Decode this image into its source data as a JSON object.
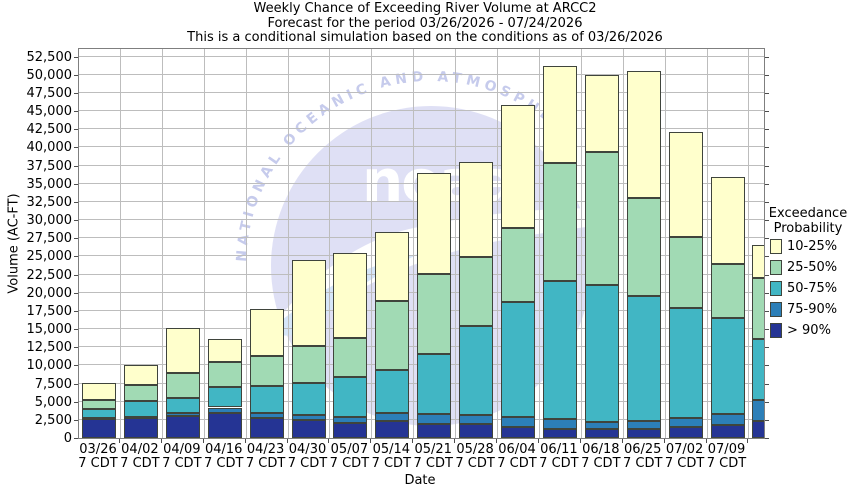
{
  "watermark": {
    "arc_text": "NATIONAL OCEANIC AND ATMOSPHER",
    "logo_text": "noaa"
  },
  "legend": {
    "title_line1": "Exceedance",
    "title_line2": "Probability"
  },
  "chart_data": {
    "type": "bar",
    "stacked": true,
    "title": "Weekly Chance of Exceeding River Volume at ARCC2",
    "subtitle": "Forecast for the period 03/26/2026 - 07/24/2026",
    "note": "This is a conditional simulation based on the conditions as of 03/26/2026",
    "xlabel": "Date",
    "ylabel": "Volume (AC-FT)",
    "ylim": [
      0,
      52500
    ],
    "ytick_step": 2500,
    "grid": true,
    "legend_position": "right",
    "ytick_labels": [
      "0",
      "2,500",
      "5,000",
      "7,500",
      "10,000",
      "12,500",
      "15,000",
      "17,500",
      "20,000",
      "22,500",
      "25,000",
      "27,500",
      "30,000",
      "32,500",
      "35,000",
      "37,500",
      "40,000",
      "42,500",
      "45,000",
      "47,500",
      "50,000",
      "52,500"
    ],
    "categories": [
      "03/26",
      "04/02",
      "04/09",
      "04/16",
      "04/23",
      "04/30",
      "05/07",
      "05/14",
      "05/21",
      "05/28",
      "06/04",
      "06/11",
      "06/18",
      "06/25",
      "07/02",
      "07/09",
      ""
    ],
    "x_sublabel": "7 CDT",
    "series": [
      {
        "name": "> 90%",
        "color": "#253494",
        "values": [
          2650,
          2750,
          3000,
          3450,
          2700,
          2450,
          2100,
          2350,
          1900,
          1900,
          1500,
          1300,
          1200,
          1300,
          1500,
          1800,
          2350
        ]
      },
      {
        "name": "75-90%",
        "color": "#2C7FB8",
        "values": [
          150,
          150,
          500,
          750,
          750,
          650,
          850,
          1100,
          1350,
          1300,
          1400,
          1300,
          1000,
          1100,
          1200,
          1500,
          2950
        ]
      },
      {
        "name": "50-75%",
        "color": "#41B6C4",
        "values": [
          1150,
          2200,
          2000,
          2800,
          3650,
          4500,
          5450,
          5950,
          8350,
          12200,
          15800,
          19000,
          18800,
          17100,
          15200,
          13200,
          8300
        ]
      },
      {
        "name": "25-50%",
        "color": "#A1DAB4",
        "values": [
          1250,
          2200,
          3500,
          3500,
          4200,
          5000,
          5400,
          9400,
          11000,
          9500,
          10200,
          16300,
          18400,
          13500,
          9700,
          7500,
          8400
        ]
      },
      {
        "name": "10-25%",
        "color": "#FFFFCC",
        "values": [
          2400,
          2700,
          6100,
          3100,
          6500,
          11900,
          11600,
          9500,
          13900,
          13100,
          17000,
          13300,
          10600,
          17500,
          14500,
          11900,
          4600
        ]
      }
    ]
  }
}
